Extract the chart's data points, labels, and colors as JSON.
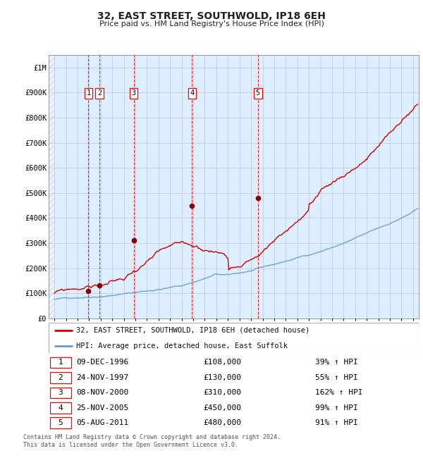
{
  "title": "32, EAST STREET, SOUTHWOLD, IP18 6EH",
  "subtitle": "Price paid vs. HM Land Registry's House Price Index (HPI)",
  "xlim_start": 1993.5,
  "xlim_end": 2025.5,
  "ylim_min": 0,
  "ylim_max": 1050000,
  "yticks": [
    0,
    100000,
    200000,
    300000,
    400000,
    500000,
    600000,
    700000,
    800000,
    900000,
    1000000
  ],
  "ytick_labels": [
    "£0",
    "£100K",
    "£200K",
    "£300K",
    "£400K",
    "£500K",
    "£600K",
    "£700K",
    "£800K",
    "£900K",
    "£1M"
  ],
  "price_paid_color": "#cc0000",
  "hpi_color": "#6699cc",
  "background_color": "#ddeeff",
  "grid_color": "#9999bb",
  "transaction_dates": [
    1996.94,
    1997.9,
    2000.86,
    2005.9,
    2011.59
  ],
  "transaction_prices": [
    108000,
    130000,
    310000,
    450000,
    480000
  ],
  "transaction_labels": [
    "1",
    "2",
    "3",
    "4",
    "5"
  ],
  "transaction_dates_str": [
    "09-DEC-1996",
    "24-NOV-1997",
    "08-NOV-2000",
    "25-NOV-2005",
    "05-AUG-2011"
  ],
  "transaction_prices_str": [
    "£108,000",
    "£130,000",
    "£310,000",
    "£450,000",
    "£480,000"
  ],
  "transaction_hpi_pct": [
    "39% ↑ HPI",
    "55% ↑ HPI",
    "162% ↑ HPI",
    "99% ↑ HPI",
    "91% ↑ HPI"
  ],
  "legend_line1": "32, EAST STREET, SOUTHWOLD, IP18 6EH (detached house)",
  "legend_line2": "HPI: Average price, detached house, East Suffolk",
  "footnote": "Contains HM Land Registry data © Crown copyright and database right 2024.\nThis data is licensed under the Open Government Licence v3.0.",
  "xticks": [
    1994,
    1995,
    1996,
    1997,
    1998,
    1999,
    2000,
    2001,
    2002,
    2003,
    2004,
    2005,
    2006,
    2007,
    2008,
    2009,
    2010,
    2011,
    2012,
    2013,
    2014,
    2015,
    2016,
    2017,
    2018,
    2019,
    2020,
    2021,
    2022,
    2023,
    2024,
    2025
  ]
}
